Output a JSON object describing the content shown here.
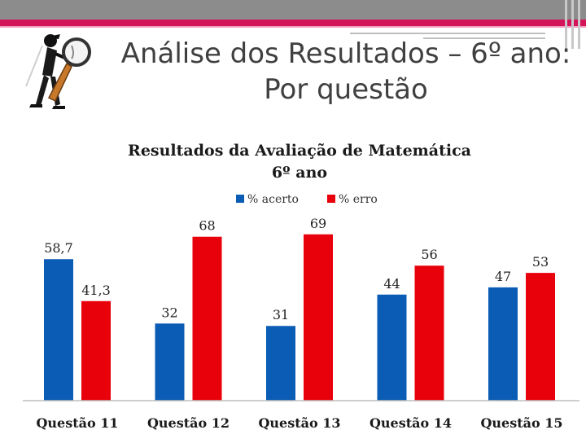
{
  "slide": {
    "title_line1": "Análise dos Resultados – 6º ano:",
    "title_line2": "Por questão"
  },
  "logo": {
    "icon": "detective-magnifier-icon"
  },
  "colors": {
    "acerto": "#0a5cb5",
    "erro": "#e8000b",
    "accent": "#d4145a"
  },
  "chart_data": {
    "type": "bar",
    "title": "Resultados da Avaliação de Matemática",
    "subtitle": "6º ano",
    "categories": [
      "Questão 11",
      "Questão 12",
      "Questão 13",
      "Questão 14",
      "Questão 15"
    ],
    "series": [
      {
        "name": "% acerto",
        "color": "#0a5cb5",
        "values": [
          58.7,
          32,
          31,
          44,
          47
        ],
        "labels": [
          "58,7",
          "32",
          "31",
          "44",
          "47"
        ]
      },
      {
        "name": "% erro",
        "color": "#e8000b",
        "values": [
          41.3,
          68,
          69,
          56,
          53
        ],
        "labels": [
          "41,3",
          "68",
          "69",
          "56",
          "53"
        ]
      }
    ],
    "ylim": [
      0,
      100
    ],
    "legend": "top",
    "grid": false
  }
}
